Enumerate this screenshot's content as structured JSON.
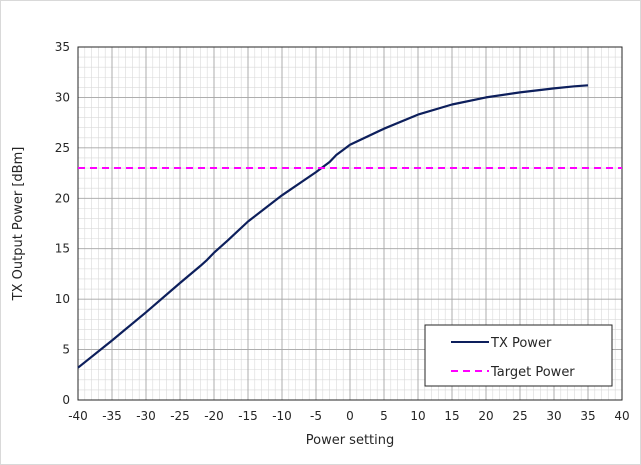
{
  "chart_data": {
    "type": "line",
    "xlabel": "Power setting",
    "ylabel": "TX Output Power [dBm]",
    "xlim": [
      -40,
      40
    ],
    "ylim": [
      0,
      35
    ],
    "x_ticks": [
      "-40",
      "-35",
      "-30",
      "-25",
      "-20",
      "-15",
      "-10",
      "-5",
      "0",
      "5",
      "10",
      "15",
      "20",
      "25",
      "30",
      "35",
      "40"
    ],
    "y_ticks": [
      "0",
      "5",
      "10",
      "15",
      "20",
      "25",
      "30",
      "35"
    ],
    "x_minor_step": 1,
    "y_minor_step": 1,
    "grid": true,
    "legend_position": "bottom-right",
    "series": [
      {
        "name": "TX Power",
        "color": "#0d1f5c",
        "style": "solid",
        "x": [
          -40,
          -35,
          -30,
          -25,
          -22,
          -21,
          -20,
          -18,
          -15,
          -10,
          -5,
          -3,
          -2,
          -1,
          0,
          5,
          10,
          15,
          20,
          25,
          30,
          33,
          35
        ],
        "y": [
          3.2,
          5.9,
          8.7,
          11.6,
          13.3,
          13.9,
          14.6,
          15.8,
          17.7,
          20.3,
          22.6,
          23.6,
          24.3,
          24.8,
          25.3,
          26.9,
          28.3,
          29.3,
          30.0,
          30.5,
          30.9,
          31.1,
          31.2
        ]
      },
      {
        "name": "Target Power",
        "color": "#ff00ff",
        "style": "dashed",
        "x": [
          -40,
          40
        ],
        "y": [
          23,
          23
        ]
      }
    ]
  }
}
